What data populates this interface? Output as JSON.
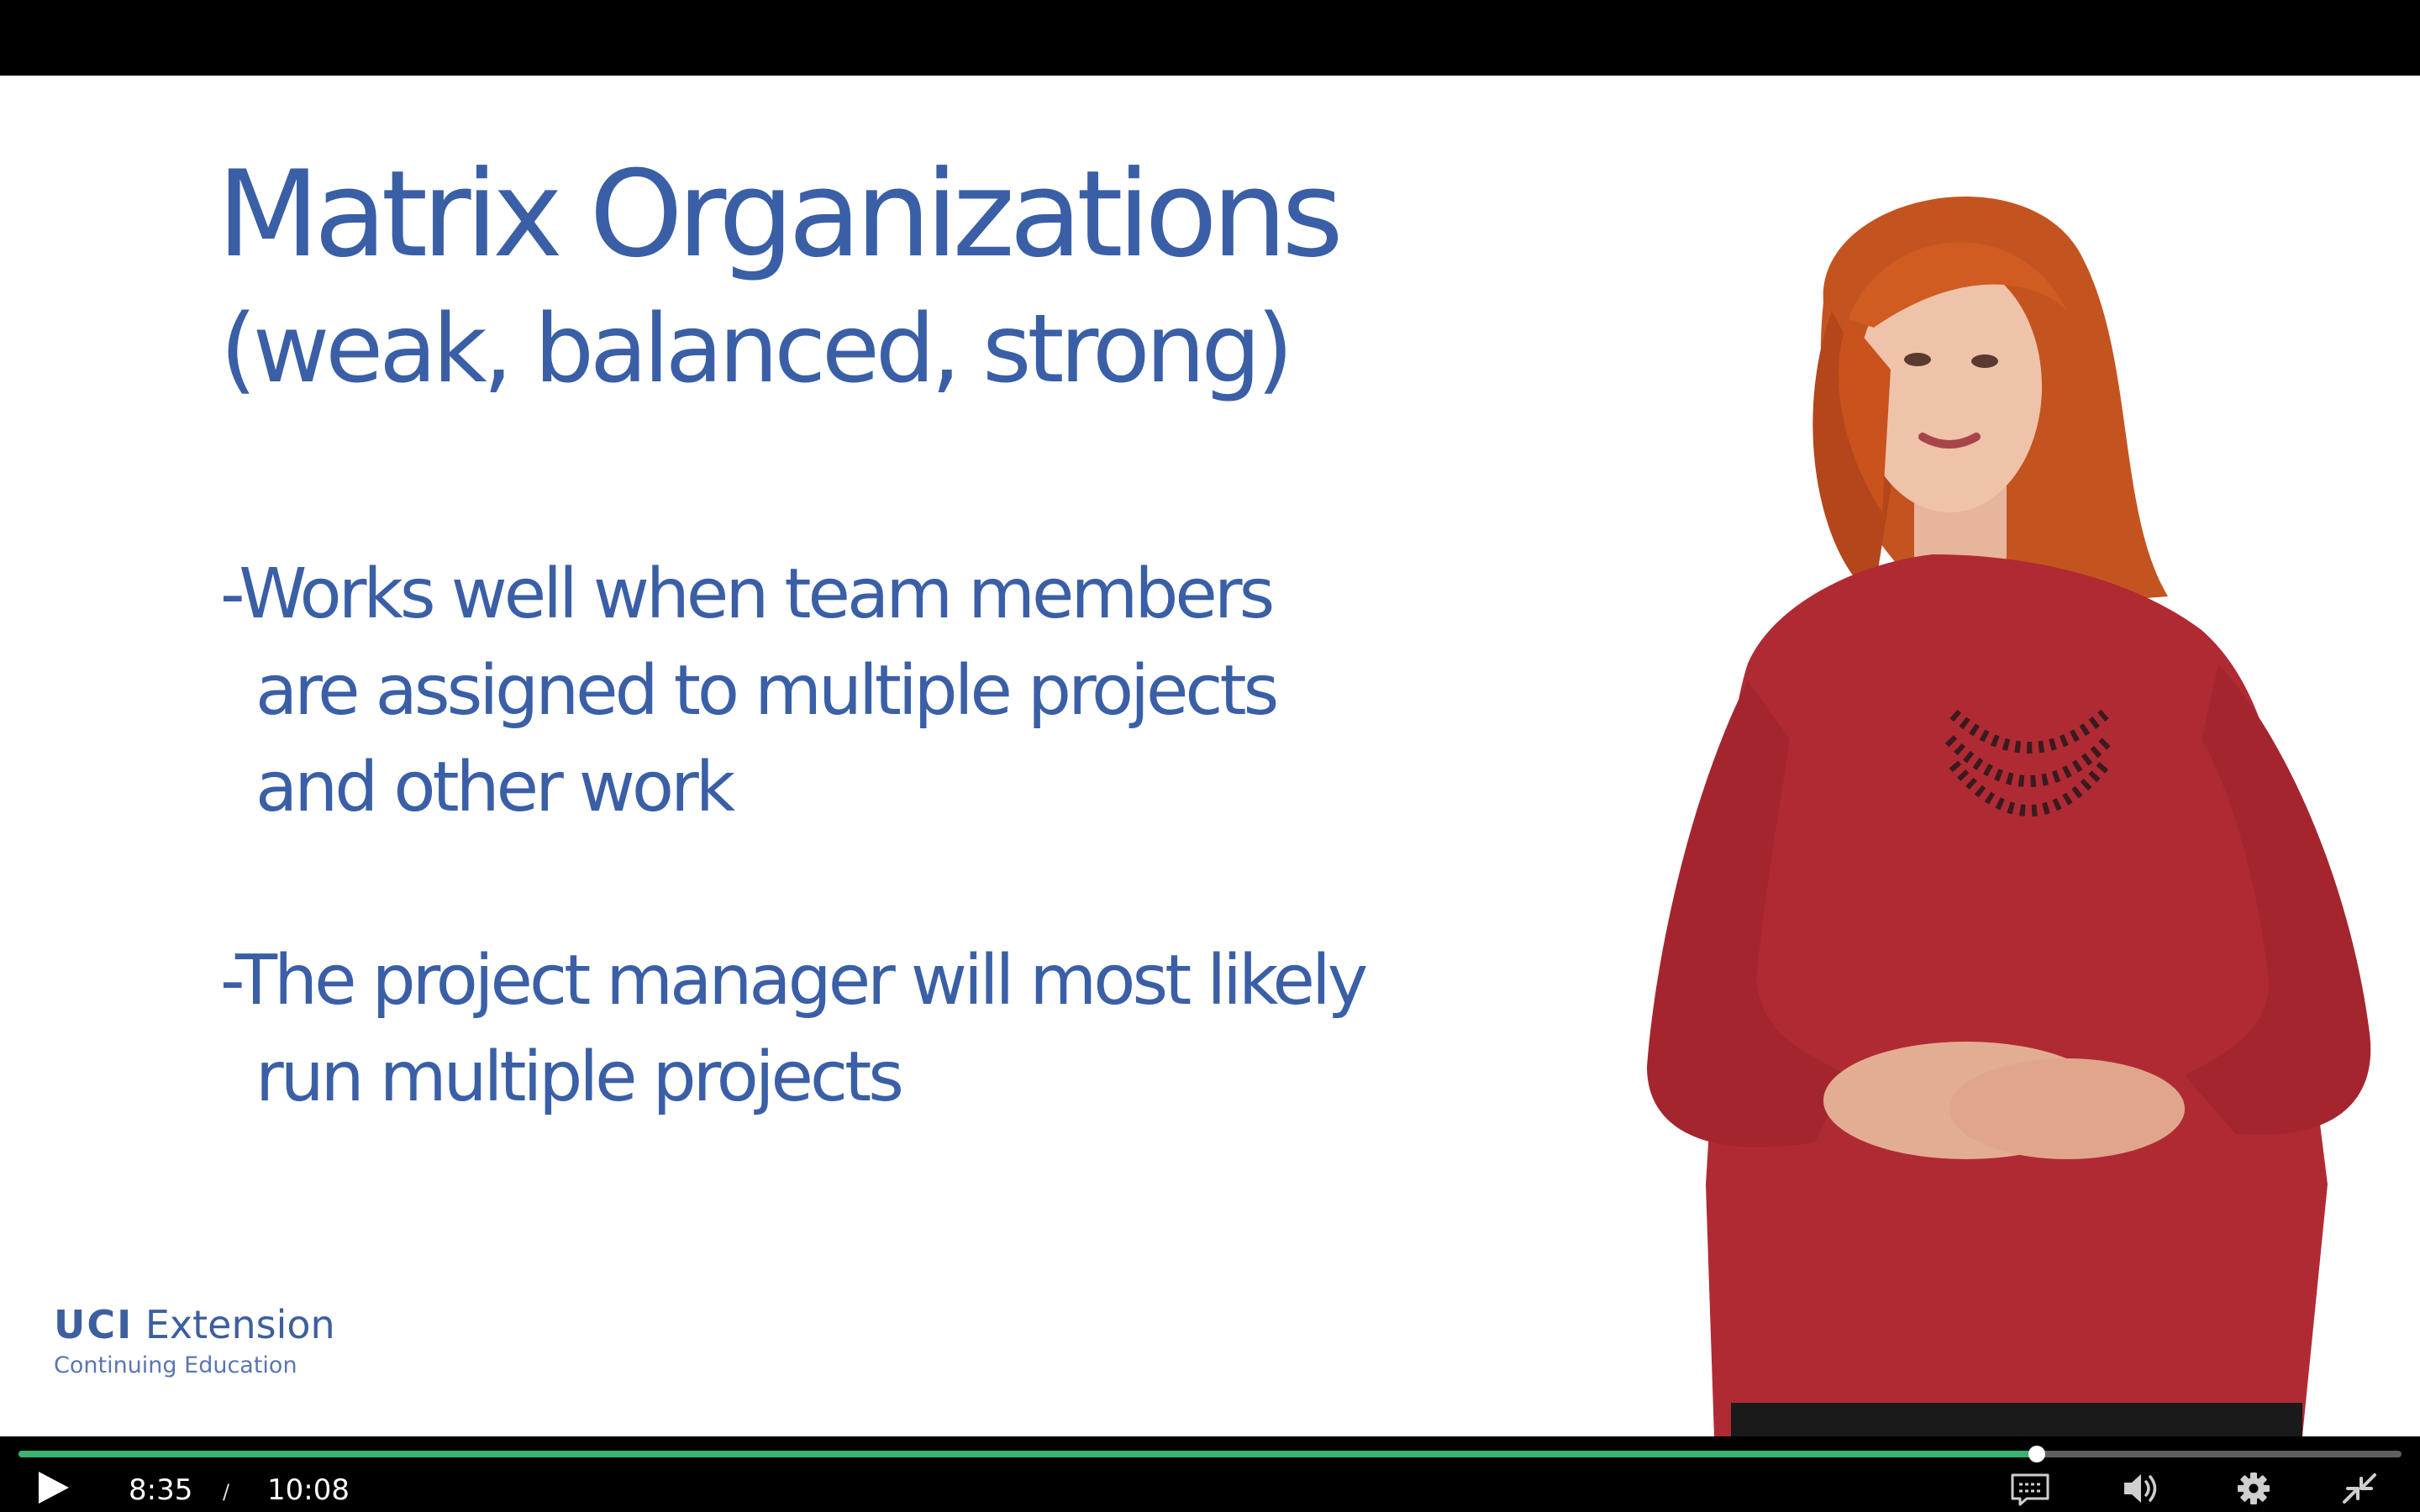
{
  "slide": {
    "title": "Matrix Organizations",
    "subtitle": "(weak, balanced, strong)",
    "bullet1": {
      "line1": "-Works well when team members",
      "line2": "are assigned to multiple projects",
      "line3": "and other work"
    },
    "bullet2": {
      "line1": "-The project manager will most likely",
      "line2": "run multiple projects"
    }
  },
  "logo": {
    "brand_bold": "UCI",
    "brand_rest": "Extension",
    "tagline": "Continuing Education"
  },
  "player": {
    "current_time": "8:35",
    "separator": "/",
    "duration": "10:08",
    "progress_fraction": 0.847,
    "accent_color": "#3cb371",
    "icons": {
      "play": "play-icon",
      "captions": "captions-icon",
      "volume": "volume-icon",
      "settings": "gear-icon",
      "exit_fullscreen": "exit-fullscreen-icon"
    }
  },
  "colors": {
    "slide_text": "#3a5fa6",
    "slide_background": "#ffffff",
    "presenter_top": "#b02a34"
  }
}
